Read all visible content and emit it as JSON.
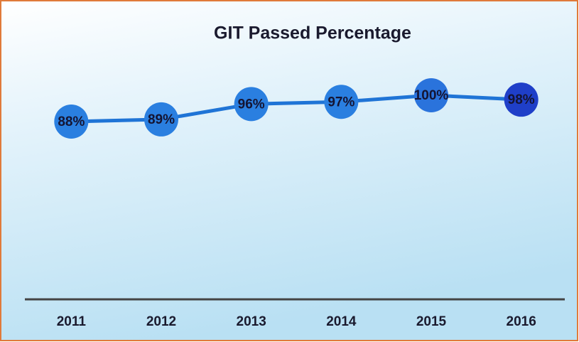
{
  "chart_data": {
    "type": "line",
    "title": "GIT Passed Percentage",
    "categories": [
      "2011",
      "2012",
      "2013",
      "2014",
      "2015",
      "2016"
    ],
    "series": [
      {
        "name": null,
        "color": "#1f74d6",
        "values": [
          88,
          89,
          96,
          97,
          100,
          98
        ],
        "value_labels": [
          "88%",
          "89%",
          "96%",
          "97%",
          "100%",
          "98%"
        ],
        "marker_colors": [
          "#2a7fe0",
          "#2a7fe0",
          "#2a7fe0",
          "#2a7fe0",
          "#2a73dc",
          "#1f3fc8"
        ]
      }
    ]
  }
}
